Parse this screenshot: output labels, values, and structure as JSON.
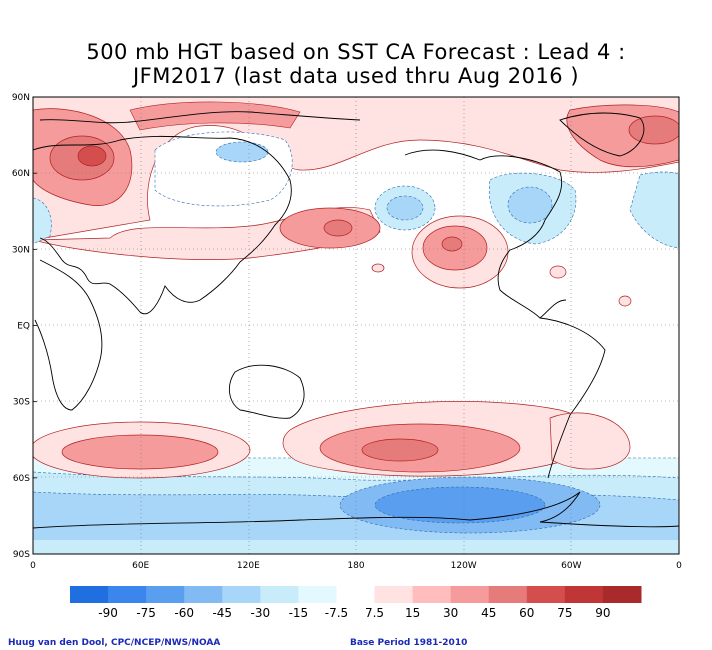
{
  "title": {
    "line1": "500 mb HGT based on SST CA Forecast : Lead 4 :",
    "line2": "JFM2017 (last data used thru Aug 2016 )"
  },
  "axes": {
    "lat_labels": [
      "90N",
      "60N",
      "30N",
      "EQ",
      "30S",
      "60S",
      "90S"
    ],
    "lat_values": [
      90,
      60,
      30,
      0,
      -30,
      -60,
      -90
    ],
    "lon_labels": [
      "0",
      "60E",
      "120E",
      "180",
      "120W",
      "60W",
      "0"
    ],
    "lon_values": [
      0,
      60,
      120,
      180,
      240,
      300,
      360
    ]
  },
  "colorbar": {
    "labels": [
      "-90",
      "-75",
      "-60",
      "-45",
      "-30",
      "-15",
      "-7.5",
      "7.5",
      "15",
      "30",
      "45",
      "60",
      "75",
      "90"
    ],
    "colors": [
      "#1f6fe0",
      "#3a86ec",
      "#5a9ef0",
      "#82baf4",
      "#a8d6f8",
      "#c8ecfa",
      "#e4f9fe",
      "#ffffff",
      "#ffe2e2",
      "#ffbdbd",
      "#f59b9b",
      "#e67b7b",
      "#d44e4e",
      "#c03636",
      "#a82a2a"
    ]
  },
  "credits": {
    "left": "Huug van den Dool, CPC/NCEP/NWS/NOAA",
    "right": "Base Period 1981-2010"
  }
}
